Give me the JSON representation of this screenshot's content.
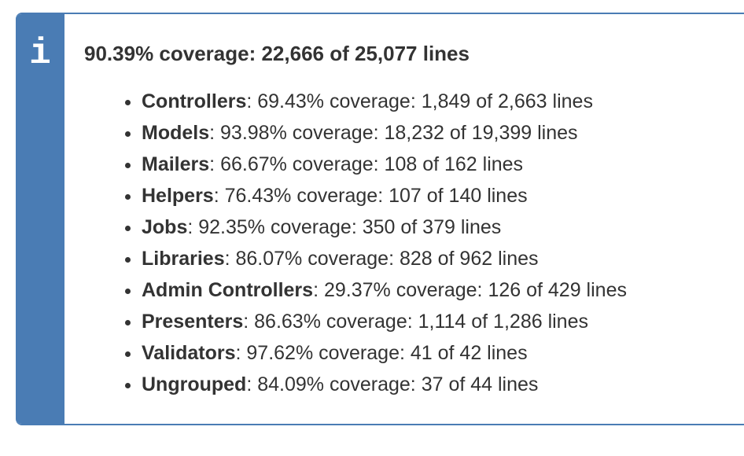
{
  "callout": {
    "accent_color": "#4a7cb4",
    "text_color": "#333333",
    "icon": {
      "name": "info-icon",
      "glyph": "i"
    },
    "title": "90.39% coverage: 22,666 of 25,077 lines",
    "groups": [
      {
        "label": "Controllers",
        "rest": ": 69.43% coverage: 1,849 of 2,663 lines"
      },
      {
        "label": "Models",
        "rest": ": 93.98% coverage: 18,232 of 19,399 lines"
      },
      {
        "label": "Mailers",
        "rest": ": 66.67% coverage: 108 of 162 lines"
      },
      {
        "label": "Helpers",
        "rest": ": 76.43% coverage: 107 of 140 lines"
      },
      {
        "label": "Jobs",
        "rest": ": 92.35% coverage: 350 of 379 lines"
      },
      {
        "label": "Libraries",
        "rest": ": 86.07% coverage: 828 of 962 lines"
      },
      {
        "label": "Admin Controllers",
        "rest": ": 29.37% coverage: 126 of 429 lines"
      },
      {
        "label": "Presenters",
        "rest": ": 86.63% coverage: 1,114 of 1,286 lines"
      },
      {
        "label": "Validators",
        "rest": ": 97.62% coverage: 41 of 42 lines"
      },
      {
        "label": "Ungrouped",
        "rest": ": 84.09% coverage: 37 of 44 lines"
      }
    ]
  }
}
